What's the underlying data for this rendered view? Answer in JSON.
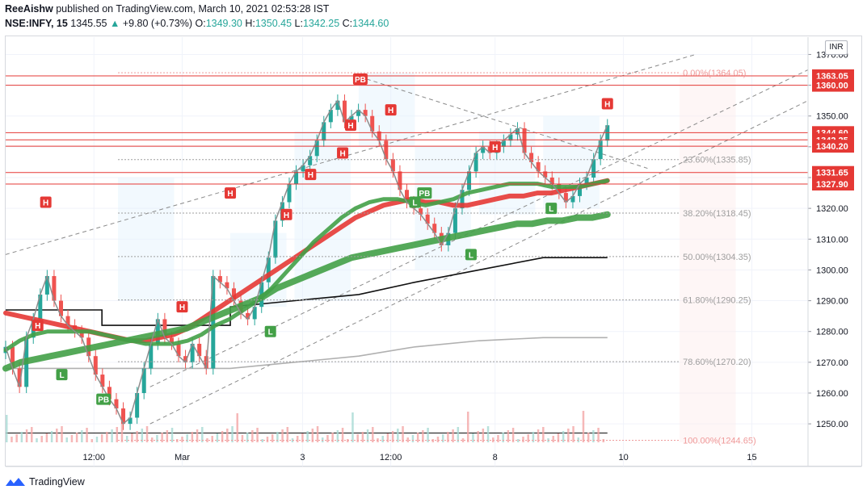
{
  "header": {
    "author": "ReeAishw",
    "published_text": "published on TradingView.com, March 10, 2021 02:53:28 IST",
    "symbol": "NSE:INFY, 15",
    "last": "1345.55",
    "change": "+9.80 (+0.73%)",
    "open_label": "O:",
    "open": "1349.30",
    "high_label": "H:",
    "high": "1350.45",
    "low_label": "L:",
    "low": "1342.25",
    "close_label": "C:",
    "close": "1344.60"
  },
  "currency_badge": "INR",
  "footer": {
    "brand": "TradingView",
    "icon": "tradingview-logo-icon"
  },
  "colors": {
    "up": "#26a69a",
    "down": "#ef5350",
    "red_label": "#e53935",
    "green_label": "#43a047",
    "grid": "#eeeeee"
  },
  "chart_data": {
    "type": "line",
    "ylim": [
      1244,
      1373
    ],
    "y_ticks": [
      1250,
      1260,
      1270,
      1280,
      1290,
      1300,
      1310,
      1320,
      1330,
      1340,
      1350,
      1360,
      1370
    ],
    "y_tick_labels": [
      "1250.00",
      "1260.00",
      "1270.00",
      "1280.00",
      "1290.00",
      "1300.00",
      "1310.00",
      "1320.00",
      "1330.00",
      "1340.00",
      "1350.00",
      "1360.00",
      "1370.00"
    ],
    "x_ticks": [
      {
        "label": "12:00",
        "t": 0.11
      },
      {
        "label": "Mar",
        "t": 0.22
      },
      {
        "label": "3",
        "t": 0.37
      },
      {
        "label": "12:00",
        "t": 0.48
      },
      {
        "label": "8",
        "t": 0.61
      },
      {
        "label": "10",
        "t": 0.77
      },
      {
        "label": "15",
        "t": 0.93
      }
    ],
    "price_labels": [
      {
        "value": 1363.05,
        "text": "1363.05",
        "color": "#e53935"
      },
      {
        "value": 1360.0,
        "text": "1360.00",
        "color": "#e53935"
      },
      {
        "value": 1344.6,
        "text": "1344.60",
        "color": "#e53935"
      },
      {
        "value": 1342.25,
        "text": "1342.25",
        "color": "#e53935"
      },
      {
        "value": 1340.2,
        "text": "1340.20",
        "color": "#e53935"
      },
      {
        "value": 1331.65,
        "text": "1331.65",
        "color": "#e53935"
      },
      {
        "value": 1327.9,
        "text": "1327.90",
        "color": "#e53935"
      }
    ],
    "fib_levels": [
      {
        "value": 1364.05,
        "text": "0.00%(1364.05)",
        "color": "#ef9a9a"
      },
      {
        "value": 1335.85,
        "text": "23.60%(1335.85)",
        "color": "#9e9e9e"
      },
      {
        "value": 1318.45,
        "text": "38.20%(1318.45)",
        "color": "#9e9e9e"
      },
      {
        "value": 1304.35,
        "text": "50.00%(1304.35)",
        "color": "#9e9e9e"
      },
      {
        "value": 1290.25,
        "text": "61.80%(1290.25)",
        "color": "#9e9e9e"
      },
      {
        "value": 1270.2,
        "text": "78.60%(1270.20)",
        "color": "#9e9e9e"
      },
      {
        "value": 1244.65,
        "text": "100.00%(1244.65)",
        "color": "#ef9a9a"
      }
    ],
    "close_series": [
      1275,
      1268,
      1262,
      1278,
      1284,
      1292,
      1298,
      1290,
      1285,
      1282,
      1280,
      1278,
      1272,
      1266,
      1262,
      1258,
      1255,
      1250,
      1252,
      1260,
      1268,
      1276,
      1284,
      1278,
      1276,
      1272,
      1270,
      1276,
      1272,
      1268,
      1298,
      1296,
      1294,
      1290,
      1286,
      1284,
      1288,
      1296,
      1304,
      1316,
      1322,
      1328,
      1332,
      1334,
      1337,
      1342,
      1348,
      1352,
      1355,
      1348,
      1350,
      1352,
      1350,
      1345,
      1342,
      1336,
      1332,
      1326,
      1322,
      1320,
      1318,
      1315,
      1312,
      1308,
      1312,
      1320,
      1326,
      1332,
      1338,
      1340,
      1338,
      1340,
      1342,
      1344,
      1346,
      1338,
      1335,
      1332,
      1330,
      1328,
      1325,
      1322,
      1324,
      1328,
      1330,
      1336,
      1342,
      1347
    ],
    "series": [
      {
        "values": [
          1286,
          1285,
          1284,
          1283,
          1282,
          1281,
          1280,
          1279,
          1278,
          1277,
          1277,
          1278,
          1279,
          1281,
          1284,
          1287,
          1290,
          1293,
          1296,
          1299,
          1302,
          1305,
          1308,
          1311,
          1314,
          1317,
          1319,
          1321,
          1322,
          1323,
          1322,
          1322,
          1321,
          1321,
          1322,
          1323,
          1324,
          1324,
          1325,
          1325,
          1326,
          1327,
          1328,
          1329
        ],
        "color": "#e53935",
        "width": 6
      },
      {
        "values": [
          1274,
          1277,
          1279,
          1280,
          1280,
          1280,
          1280,
          1279,
          1278,
          1277,
          1276,
          1276,
          1276,
          1277,
          1279,
          1282,
          1284,
          1287,
          1290,
          1294,
          1299,
          1304,
          1309,
          1313,
          1317,
          1320,
          1322,
          1323,
          1323,
          1322,
          1321,
          1322,
          1323,
          1325,
          1326,
          1327,
          1328,
          1328,
          1328,
          1327,
          1327,
          1327,
          1328,
          1329
        ],
        "color": "#43a047",
        "width": 5
      },
      {
        "values": [
          1268,
          1270,
          1271,
          1272,
          1273,
          1274,
          1275,
          1276,
          1277,
          1278,
          1279,
          1280,
          1281,
          1283,
          1285,
          1287,
          1289,
          1291,
          1294,
          1296,
          1298,
          1300,
          1302,
          1304,
          1305,
          1306,
          1307,
          1308,
          1309,
          1310,
          1311,
          1312,
          1313,
          1314,
          1315,
          1315,
          1316,
          1316,
          1317,
          1317,
          1318
        ],
        "color": "#43a047",
        "width": 8
      }
    ]
  }
}
